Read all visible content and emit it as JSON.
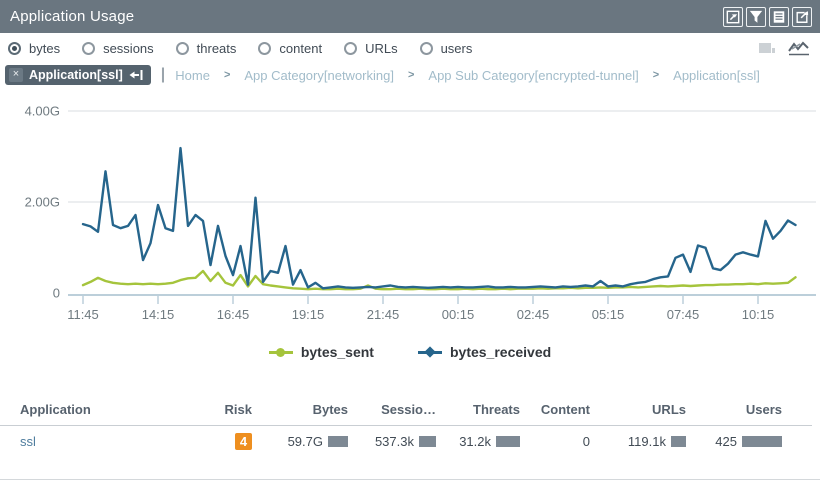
{
  "window": {
    "title": "Application Usage"
  },
  "titlebar_icons": {
    "maximize": "maximize",
    "filter": "filter",
    "list": "list",
    "export": "export"
  },
  "metric_options": [
    {
      "label": "bytes",
      "selected": true
    },
    {
      "label": "sessions",
      "selected": false
    },
    {
      "label": "threats",
      "selected": false
    },
    {
      "label": "content",
      "selected": false
    },
    {
      "label": "URLs",
      "selected": false
    },
    {
      "label": "users",
      "selected": false
    }
  ],
  "filter_tag": {
    "label": "Application[ssl]",
    "close_glyph": "×"
  },
  "breadcrumb": {
    "separator": ">",
    "items": [
      {
        "label": "Home"
      },
      {
        "label": "App Category[networking]"
      },
      {
        "label": "App Sub Category[encrypted-tunnel]"
      },
      {
        "label": "Application[ssl]"
      }
    ]
  },
  "chart_data": {
    "type": "line",
    "unit": "G",
    "ylim": [
      0,
      4.4
    ],
    "grid": true,
    "legend_position": "bottom",
    "y_ticks": [
      {
        "value": 0,
        "label": "0"
      },
      {
        "value": 2,
        "label": "2.00G"
      },
      {
        "value": 4,
        "label": "4.00G"
      }
    ],
    "x_tick_labels": [
      "11:45",
      "14:15",
      "16:45",
      "19:15",
      "21:45",
      "00:15",
      "02:45",
      "05:15",
      "07:45",
      "10:15"
    ],
    "tick_every": 10,
    "series": [
      {
        "name": "bytes_sent",
        "color": "#a5c43c",
        "values": [
          0.13,
          0.2,
          0.29,
          0.22,
          0.18,
          0.16,
          0.15,
          0.16,
          0.15,
          0.16,
          0.15,
          0.16,
          0.18,
          0.24,
          0.28,
          0.29,
          0.44,
          0.22,
          0.4,
          0.18,
          0.12,
          0.35,
          0.1,
          0.33,
          0.15,
          0.12,
          0.1,
          0.08,
          0.06,
          0.05,
          0.04,
          0.05,
          0.04,
          0.04,
          0.05,
          0.04,
          0.04,
          0.05,
          0.12,
          0.05,
          0.04,
          0.04,
          0.05,
          0.04,
          0.04,
          0.05,
          0.04,
          0.04,
          0.05,
          0.04,
          0.04,
          0.05,
          0.04,
          0.05,
          0.04,
          0.04,
          0.05,
          0.04,
          0.05,
          0.05,
          0.05,
          0.06,
          0.05,
          0.06,
          0.06,
          0.07,
          0.06,
          0.07,
          0.07,
          0.08,
          0.07,
          0.08,
          0.08,
          0.09,
          0.08,
          0.09,
          0.1,
          0.11,
          0.1,
          0.11,
          0.12,
          0.11,
          0.12,
          0.13,
          0.13,
          0.14,
          0.14,
          0.15,
          0.15,
          0.16,
          0.15,
          0.17,
          0.16,
          0.17,
          0.18,
          0.3
        ]
      },
      {
        "name": "bytes_received",
        "color": "#26658c",
        "values": [
          1.47,
          1.42,
          1.3,
          2.63,
          1.45,
          1.38,
          1.43,
          1.67,
          0.68,
          1.05,
          1.89,
          1.38,
          1.32,
          3.14,
          1.43,
          1.67,
          1.54,
          0.57,
          1.43,
          0.77,
          0.35,
          0.99,
          0.14,
          2.05,
          0.2,
          0.44,
          0.4,
          0.99,
          0.14,
          0.46,
          0.08,
          0.18,
          0.06,
          0.08,
          0.1,
          0.08,
          0.07,
          0.08,
          0.09,
          0.08,
          0.1,
          0.12,
          0.09,
          0.08,
          0.09,
          0.08,
          0.07,
          0.08,
          0.09,
          0.08,
          0.09,
          0.08,
          0.08,
          0.09,
          0.1,
          0.08,
          0.08,
          0.09,
          0.08,
          0.08,
          0.09,
          0.1,
          0.09,
          0.08,
          0.1,
          0.09,
          0.1,
          0.12,
          0.1,
          0.22,
          0.1,
          0.12,
          0.1,
          0.15,
          0.18,
          0.2,
          0.26,
          0.3,
          0.32,
          0.73,
          0.8,
          0.42,
          1.0,
          0.95,
          0.5,
          0.46,
          0.6,
          0.8,
          0.85,
          0.8,
          0.76,
          1.54,
          1.15,
          1.32,
          1.55,
          1.45
        ]
      }
    ]
  },
  "legend": {
    "items": [
      {
        "label": "bytes_sent",
        "color": "#a5c43c",
        "marker": "circle"
      },
      {
        "label": "bytes_received",
        "color": "#26658c",
        "marker": "diamond"
      }
    ]
  },
  "table": {
    "columns": [
      "Application",
      "Risk",
      "Bytes",
      "Sessio…",
      "Threats",
      "Content",
      "URLs",
      "Users"
    ],
    "rows": [
      {
        "application": "ssl",
        "risk": "4",
        "risk_color": "#ee8f20",
        "bytes": {
          "value": "59.7G",
          "bar": 20
        },
        "sessions": {
          "value": "537.3k",
          "bar": 17
        },
        "threats": {
          "value": "31.2k",
          "bar": 24
        },
        "content": {
          "value": "0",
          "bar": 0
        },
        "urls": {
          "value": "119.1k",
          "bar": 15
        },
        "users": {
          "value": "425",
          "bar": 40
        }
      }
    ]
  }
}
